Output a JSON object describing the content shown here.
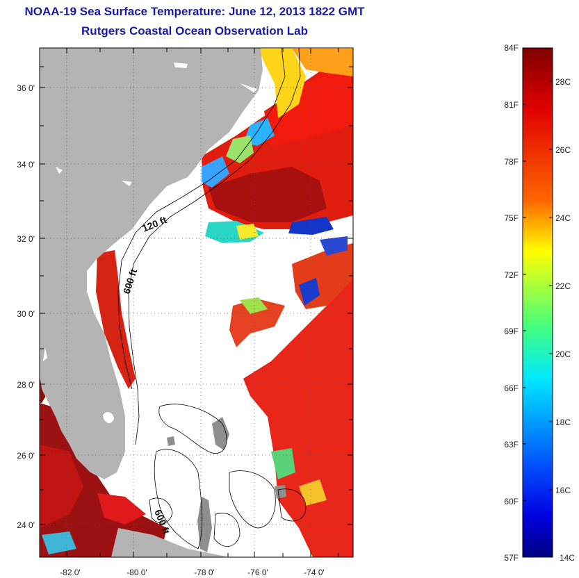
{
  "title": "NOAA-19 Sea Surface Temperature:  June 12, 2013 1822 GMT",
  "subtitle": "Rutgers Coastal Ocean Observation Lab",
  "map": {
    "lat_labels": [
      "36 0'",
      "34 0'",
      "32 0'",
      "30 0'",
      "28 0'",
      "26 0'",
      "24 0'"
    ],
    "lon_labels": [
      "-82 0'",
      "-80 0'",
      "-78 0'",
      "-76 0'",
      "-74 0'"
    ],
    "contour_labels": [
      "120 ft",
      "600 ft",
      "600 ft"
    ],
    "land_color": "#b4b4b4",
    "grid": "dotted"
  },
  "colorbar": {
    "f_labels": [
      "84F",
      "81F",
      "78F",
      "75F",
      "72F",
      "69F",
      "66F",
      "63F",
      "60F",
      "57F"
    ],
    "c_labels": [
      "28C",
      "26C",
      "24C",
      "22C",
      "20C",
      "18C",
      "16C",
      "14C"
    ],
    "colormap": "jet",
    "stops": [
      "#7f0000",
      "#ff0000",
      "#ffff00",
      "#00ffff",
      "#0000ff",
      "#00007f"
    ]
  }
}
